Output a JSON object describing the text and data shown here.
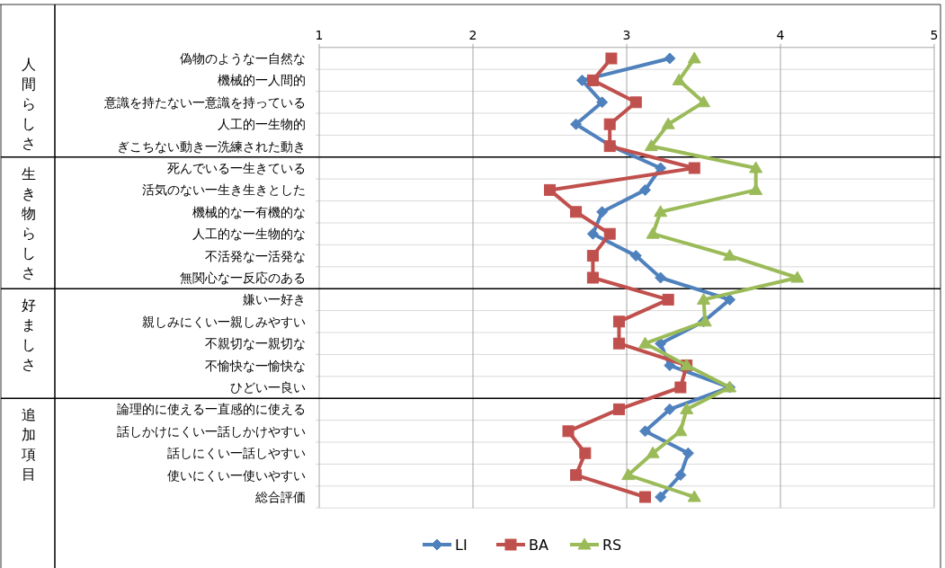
{
  "chart_data": {
    "type": "line",
    "orientation": "horizontal",
    "categories": [
      "偽物のような一自然な",
      "機械的一人間的",
      "意識を持たない一意識を持っている",
      "人工的一生物的",
      "ぎこちない動き一洗練された動き",
      "死んでいる一生きている",
      "活気のない一生き生きとした",
      "機械的な一有機的な",
      "人工的な一生物的な",
      "不活発な一活発な",
      "無関心な一反応のある",
      "嫌い一好き",
      "親しみにくい一親しみやすい",
      "不親切な一親切な",
      "不愉快な一愉快な",
      "ひどい一良い",
      "論理的に使える一直感的に使える",
      "話しかけにくい一話しかけやすい",
      "話しにくい一話しやすい",
      "使いにくい一使いやすい",
      "総合評価"
    ],
    "series": [
      {
        "name": "LI",
        "color": "#4f81bd",
        "marker": "diamond",
        "values": [
          3.28,
          2.71,
          2.84,
          2.67,
          2.9,
          3.22,
          3.12,
          2.84,
          2.78,
          3.06,
          3.22,
          3.67,
          3.5,
          3.22,
          3.28,
          3.67,
          3.28,
          3.12,
          3.4,
          3.35,
          3.22
        ]
      },
      {
        "name": "BA",
        "color": "#c0504d",
        "marker": "square",
        "values": [
          2.9,
          2.78,
          3.06,
          2.89,
          2.89,
          3.44,
          2.5,
          2.67,
          2.89,
          2.78,
          2.78,
          3.27,
          2.95,
          2.95,
          3.39,
          3.35,
          2.95,
          2.62,
          2.73,
          2.67,
          3.12
        ]
      },
      {
        "name": "RS",
        "color": "#9bbb59",
        "marker": "triangle",
        "values": [
          3.44,
          3.34,
          3.5,
          3.27,
          3.16,
          3.84,
          3.84,
          3.22,
          3.17,
          3.67,
          4.11,
          3.5,
          3.51,
          3.12,
          3.39,
          3.67,
          3.39,
          3.35,
          3.17,
          3.01,
          3.44
        ]
      }
    ],
    "xlim": [
      1,
      5
    ],
    "xticks": [
      1,
      2,
      3,
      4,
      5
    ],
    "grid": true,
    "legend": "bottom",
    "annotations": [
      "人間らしさ",
      "生き物らしさ",
      "好ましさ",
      "追加項目"
    ]
  }
}
